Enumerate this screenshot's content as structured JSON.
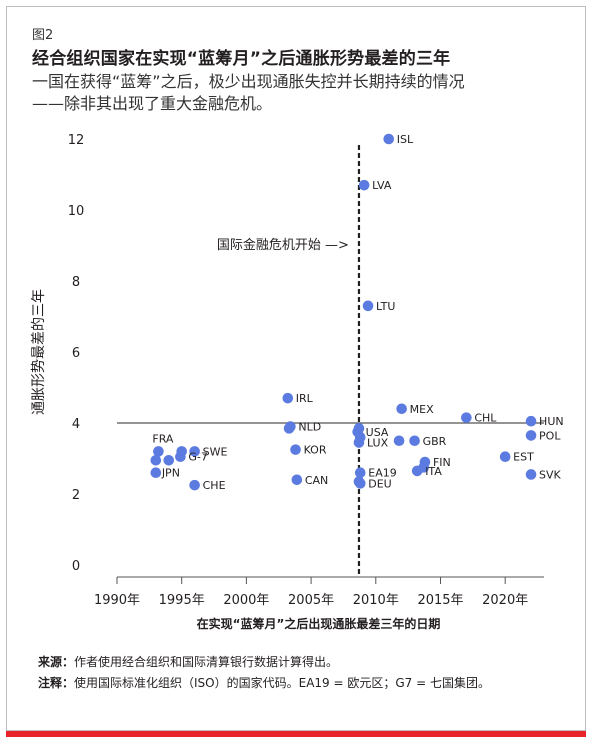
{
  "figure_label": "图2",
  "title": "经合组织国家在实现“蓝筹月”之后通胀形势最差的三年",
  "subtitle_line1": "一国在获得“蓝筹”之后，极少出现通胀失控并长期持续的情况",
  "subtitle_line2": "——除非其出现了重大金融危机。",
  "source_label": "来源：",
  "source_text": "作者使用经合组织和国际清算银行数据计算得出。",
  "note_label": "注释：",
  "note_text": "使用国际标准化组织（ISO）的国家代码。EA19 = 欧元区；G7 = 七国集团。",
  "colors": {
    "point": "#5b7be0",
    "reference_line": "#555555",
    "crisis_line": "#222222",
    "accent": "#e8242a"
  },
  "chart_data": {
    "type": "scatter",
    "xlabel": "在实现“蓝筹月”之后出现通胀最差三年的日期",
    "ylabel": "通胀形势最差的三年",
    "xlim": [
      1990,
      2023
    ],
    "ylim": [
      0,
      12
    ],
    "x_ticks": [
      1990,
      1995,
      2000,
      2005,
      2010,
      2015,
      2020
    ],
    "x_tick_labels": [
      "1990年",
      "1995年",
      "2000年",
      "2005年",
      "2010年",
      "2015年",
      "2020年"
    ],
    "y_ticks": [
      0,
      2,
      4,
      6,
      8,
      10,
      12
    ],
    "y_tick_labels": [
      "0",
      "2",
      "4",
      "6",
      "8",
      "10",
      "12"
    ],
    "reference_y": 4,
    "crisis_x": 2008.7,
    "crisis_annotation": "国际金融危机开始 —>",
    "points": [
      {
        "x": 2011.0,
        "y": 12.0,
        "label": "ISL"
      },
      {
        "x": 2009.1,
        "y": 10.7,
        "label": "LVA"
      },
      {
        "x": 2009.4,
        "y": 7.3,
        "label": "LTU"
      },
      {
        "x": 2003.2,
        "y": 4.7,
        "label": "IRL"
      },
      {
        "x": 2012.0,
        "y": 4.4,
        "label": "MEX"
      },
      {
        "x": 2017.0,
        "y": 4.15,
        "label": "CHL"
      },
      {
        "x": 2022.0,
        "y": 4.05,
        "label": "HUN"
      },
      {
        "x": 2022.0,
        "y": 3.65,
        "label": "POL"
      },
      {
        "x": 2003.4,
        "y": 3.9,
        "label": "NLD"
      },
      {
        "x": 2003.3,
        "y": 3.85,
        "label": ""
      },
      {
        "x": 2008.7,
        "y": 3.85,
        "label": ""
      },
      {
        "x": 2008.6,
        "y": 3.75,
        "label": "USA"
      },
      {
        "x": 2008.8,
        "y": 3.6,
        "label": ""
      },
      {
        "x": 2008.7,
        "y": 3.45,
        "label": "LUX"
      },
      {
        "x": 2011.8,
        "y": 3.5,
        "label": ""
      },
      {
        "x": 2013.0,
        "y": 3.5,
        "label": "GBR"
      },
      {
        "x": 2003.8,
        "y": 3.25,
        "label": "KOR"
      },
      {
        "x": 1993.2,
        "y": 3.2,
        "label": "FRA"
      },
      {
        "x": 1995.0,
        "y": 3.2,
        "label": ""
      },
      {
        "x": 1996.0,
        "y": 3.2,
        "label": "SWE"
      },
      {
        "x": 1994.9,
        "y": 3.05,
        "label": "G-7"
      },
      {
        "x": 1993.0,
        "y": 2.95,
        "label": ""
      },
      {
        "x": 1994.0,
        "y": 2.95,
        "label": ""
      },
      {
        "x": 1993.0,
        "y": 2.6,
        "label": "JPN"
      },
      {
        "x": 2020.0,
        "y": 3.05,
        "label": "EST"
      },
      {
        "x": 2013.8,
        "y": 2.9,
        "label": "FIN"
      },
      {
        "x": 2013.7,
        "y": 2.75,
        "label": ""
      },
      {
        "x": 2013.2,
        "y": 2.65,
        "label": "ITA"
      },
      {
        "x": 2008.8,
        "y": 2.6,
        "label": "EA19"
      },
      {
        "x": 2022.0,
        "y": 2.55,
        "label": "SVK"
      },
      {
        "x": 2003.9,
        "y": 2.4,
        "label": "CAN"
      },
      {
        "x": 2008.7,
        "y": 2.35,
        "label": ""
      },
      {
        "x": 2008.8,
        "y": 2.3,
        "label": "DEU"
      },
      {
        "x": 1996.0,
        "y": 2.25,
        "label": "CHE"
      }
    ]
  }
}
